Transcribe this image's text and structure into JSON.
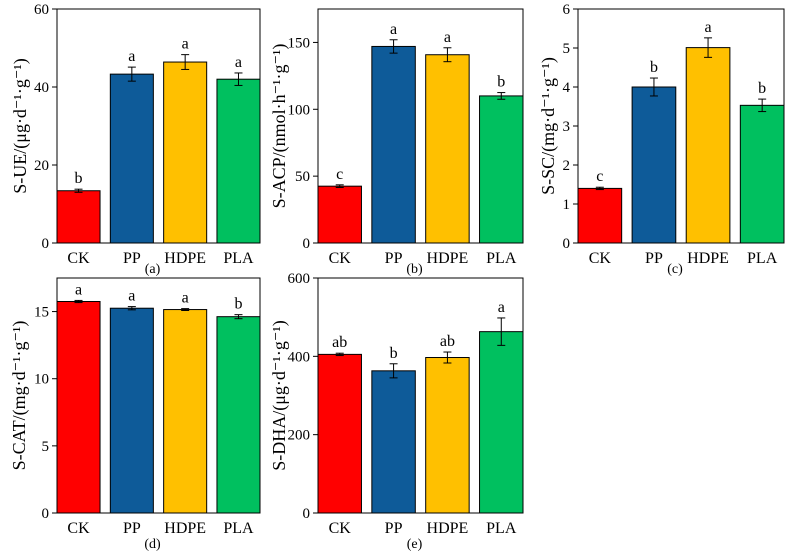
{
  "chart_data": [
    {
      "panel": "(a)",
      "type": "bar",
      "title": "",
      "xlabel": "",
      "ylabel": "S-UE/(μg·d⁻¹·g⁻¹)",
      "categories": [
        "CK",
        "PP",
        "HDPE",
        "PLA"
      ],
      "values": [
        13.4,
        43.3,
        46.4,
        42.0
      ],
      "errors": [
        0.4,
        1.8,
        1.9,
        1.6
      ],
      "significance": [
        "b",
        "a",
        "a",
        "a"
      ],
      "colors": [
        "#ff0000",
        "#0e5b99",
        "#ffc000",
        "#00c05f"
      ],
      "ylim": [
        0,
        60
      ],
      "yticks": [
        0,
        20,
        40,
        60
      ]
    },
    {
      "panel": "(b)",
      "type": "bar",
      "title": "",
      "xlabel": "",
      "ylabel": "S-ACP/(nmol·h⁻¹·g⁻¹)",
      "categories": [
        "CK",
        "PP",
        "HDPE",
        "PLA"
      ],
      "values": [
        42.5,
        147.0,
        140.8,
        110.0
      ],
      "errors": [
        1.0,
        5.0,
        5.2,
        2.5
      ],
      "significance": [
        "c",
        "a",
        "a",
        "b"
      ],
      "colors": [
        "#ff0000",
        "#0e5b99",
        "#ffc000",
        "#00c05f"
      ],
      "ylim": [
        0,
        175
      ],
      "yticks": [
        0,
        50,
        100,
        150
      ]
    },
    {
      "panel": "(c)",
      "type": "bar",
      "title": "",
      "xlabel": "",
      "ylabel": "S-SC/(mg·d⁻¹·g⁻¹)",
      "categories": [
        "CK",
        "PP",
        "HDPE",
        "PLA"
      ],
      "values": [
        1.4,
        4.0,
        5.01,
        3.53
      ],
      "errors": [
        0.03,
        0.23,
        0.25,
        0.16
      ],
      "significance": [
        "c",
        "b",
        "a",
        "b"
      ],
      "colors": [
        "#ff0000",
        "#0e5b99",
        "#ffc000",
        "#00c05f"
      ],
      "ylim": [
        0,
        6
      ],
      "yticks": [
        0,
        1,
        2,
        3,
        4,
        5,
        6
      ]
    },
    {
      "panel": "(d)",
      "type": "bar",
      "title": "",
      "xlabel": "",
      "ylabel": "S-CAT/(mg·d⁻¹·g⁻¹)",
      "categories": [
        "CK",
        "PP",
        "HDPE",
        "PLA"
      ],
      "values": [
        15.75,
        15.25,
        15.15,
        14.62
      ],
      "errors": [
        0.08,
        0.12,
        0.07,
        0.15
      ],
      "significance": [
        "a",
        "a",
        "a",
        "b"
      ],
      "colors": [
        "#ff0000",
        "#0e5b99",
        "#ffc000",
        "#00c05f"
      ],
      "ylim": [
        0,
        17.5
      ],
      "yticks": [
        0,
        5,
        10,
        15
      ]
    },
    {
      "panel": "(e)",
      "type": "bar",
      "title": "",
      "xlabel": "",
      "ylabel": "S-DHA/(μg·d⁻¹·g⁻¹)",
      "categories": [
        "CK",
        "PP",
        "HDPE",
        "PLA"
      ],
      "values": [
        405,
        363,
        397,
        463
      ],
      "errors": [
        3,
        18,
        14,
        35
      ],
      "significance": [
        "ab",
        "b",
        "ab",
        "a"
      ],
      "colors": [
        "#ff0000",
        "#0e5b99",
        "#ffc000",
        "#00c05f"
      ],
      "ylim": [
        0,
        600
      ],
      "yticks": [
        0,
        200,
        400,
        600
      ]
    }
  ]
}
